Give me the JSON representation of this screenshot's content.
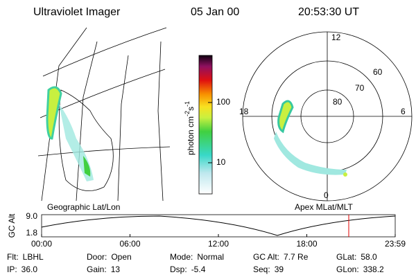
{
  "header": {
    "instrument": "Ultraviolet Imager",
    "date": "05 Jan 00",
    "time": "20:53:30 UT"
  },
  "colorbar": {
    "label": "photon cm",
    "exp1": "-2",
    "unit2": "s",
    "exp2": "-1",
    "ticks": [
      "100",
      "10"
    ]
  },
  "polar": {
    "mlt_labels": [
      "12",
      "18",
      "6",
      "0"
    ],
    "lat_labels": [
      "60",
      "70",
      "80"
    ]
  },
  "panel_labels": {
    "left": "Geographic Lat/Lon",
    "right": "Apex MLat/MLT"
  },
  "altitude": {
    "axis_label": "GC Alt",
    "yticks": [
      "9.0",
      "1.8"
    ],
    "xticks": [
      "00:00",
      "06:00",
      "12:00",
      "18:00",
      "23:59"
    ]
  },
  "info": {
    "rows": [
      [
        {
          "label": "Flt:",
          "value": "LBHL"
        },
        {
          "label": "Door:",
          "value": "Open"
        },
        {
          "label": "Mode:",
          "value": "Normal"
        },
        {
          "label": "GC Alt:",
          "value": "7.7 Re"
        },
        {
          "label": "GLat:",
          "value": "58.0"
        }
      ],
      [
        {
          "label": "IP:",
          "value": "36.0"
        },
        {
          "label": "Gain:",
          "value": "13"
        },
        {
          "label": "Dsp:",
          "value": "-5.4"
        },
        {
          "label": "Seq:",
          "value": "39"
        },
        {
          "label": "GLon:",
          "value": "338.2"
        }
      ]
    ]
  }
}
